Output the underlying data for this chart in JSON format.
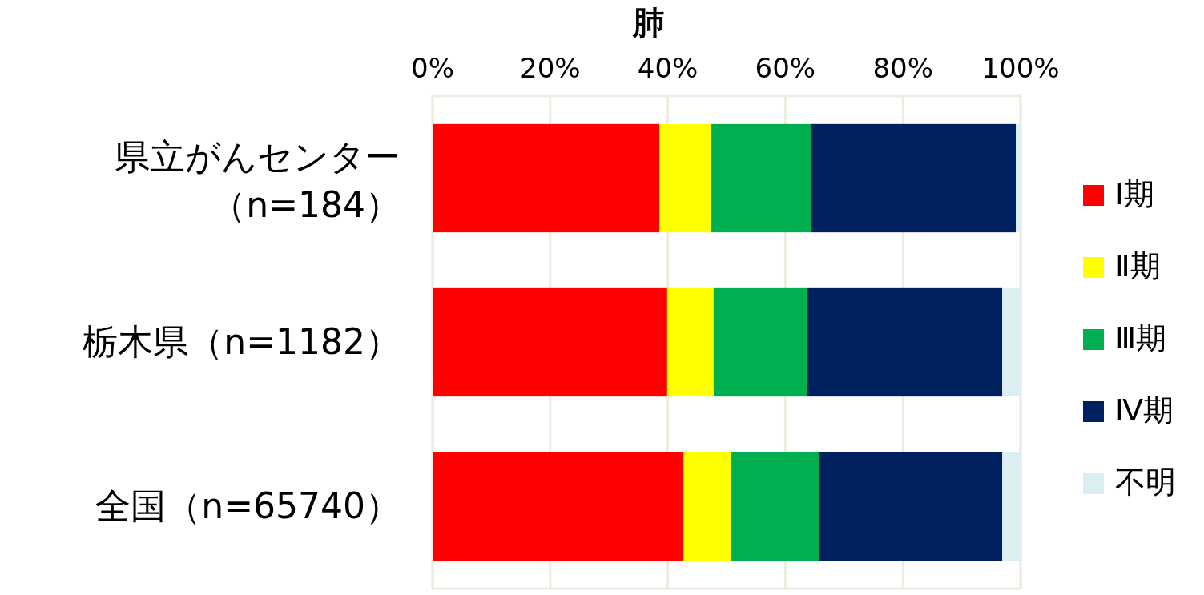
{
  "chart_data": {
    "type": "bar",
    "orientation": "horizontal",
    "stacked": true,
    "title": "肺",
    "categories": [
      "県立がんセンター（n=184）",
      "栃木県（n=1182）",
      "全国（n=65740）"
    ],
    "series": [
      {
        "name": "Ⅰ期",
        "color": "#ff0000",
        "values": [
          38.6,
          39.9,
          42.7
        ]
      },
      {
        "name": "Ⅱ期",
        "color": "#ffff00",
        "values": [
          8.8,
          7.9,
          8.0
        ]
      },
      {
        "name": "Ⅲ期",
        "color": "#00b050",
        "values": [
          17.0,
          15.9,
          15.0
        ]
      },
      {
        "name": "Ⅳ期",
        "color": "#002060",
        "values": [
          34.8,
          33.2,
          31.2
        ]
      },
      {
        "name": "不明",
        "color": "#daeef3",
        "values": [
          0.8,
          3.1,
          3.1
        ]
      }
    ],
    "xlim": [
      0,
      100
    ],
    "xticks": [
      {
        "value": 0,
        "label": "0%"
      },
      {
        "value": 20,
        "label": "20%"
      },
      {
        "value": 40,
        "label": "40%"
      },
      {
        "value": 60,
        "label": "60%"
      },
      {
        "value": 80,
        "label": "80%"
      },
      {
        "value": 100,
        "label": "100%"
      }
    ],
    "grid": "x",
    "legend": "right"
  }
}
